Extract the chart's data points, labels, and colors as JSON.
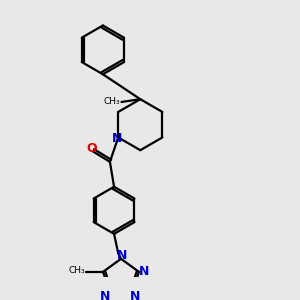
{
  "bg_color": "#e8e8e8",
  "bond_color": "#000000",
  "nitrogen_color": "#0000cc",
  "oxygen_color": "#dd0000",
  "lw": 1.6,
  "figsize": [
    3.0,
    3.0
  ],
  "dpi": 100,
  "xlim": [
    0,
    10
  ],
  "ylim": [
    0,
    10
  ]
}
